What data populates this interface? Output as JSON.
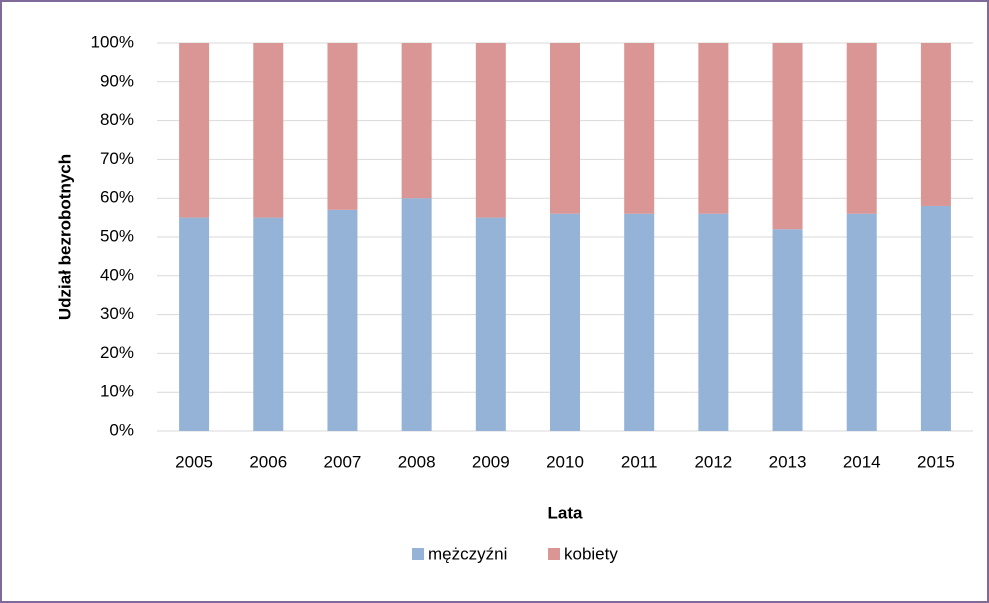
{
  "chart_data": {
    "type": "stacked_bar",
    "x_label": "Lata",
    "y_label": "Udział bezrobotnych",
    "categories": [
      "2005",
      "2006",
      "2007",
      "2008",
      "2009",
      "2010",
      "2011",
      "2012",
      "2013",
      "2014",
      "2015"
    ],
    "series": [
      {
        "name": "mężczyźni",
        "color": "#95b3d7",
        "values": [
          55,
          55,
          57,
          60,
          55,
          56,
          56,
          56,
          52,
          56,
          58
        ]
      },
      {
        "name": "kobiety",
        "color": "#d99694",
        "values": [
          45,
          45,
          43,
          40,
          45,
          44,
          44,
          44,
          48,
          44,
          42
        ]
      }
    ],
    "ylim": [
      0,
      100
    ],
    "yticks": [
      {
        "value": 0,
        "label": "0%"
      },
      {
        "value": 10,
        "label": "10%"
      },
      {
        "value": 20,
        "label": "20%"
      },
      {
        "value": 30,
        "label": "30%"
      },
      {
        "value": 40,
        "label": "40%"
      },
      {
        "value": 50,
        "label": "50%"
      },
      {
        "value": 60,
        "label": "60%"
      },
      {
        "value": 70,
        "label": "70%"
      },
      {
        "value": 80,
        "label": "80%"
      },
      {
        "value": 90,
        "label": "90%"
      },
      {
        "value": 100,
        "label": "100%"
      }
    ],
    "grid": true,
    "legend": "bottom"
  }
}
